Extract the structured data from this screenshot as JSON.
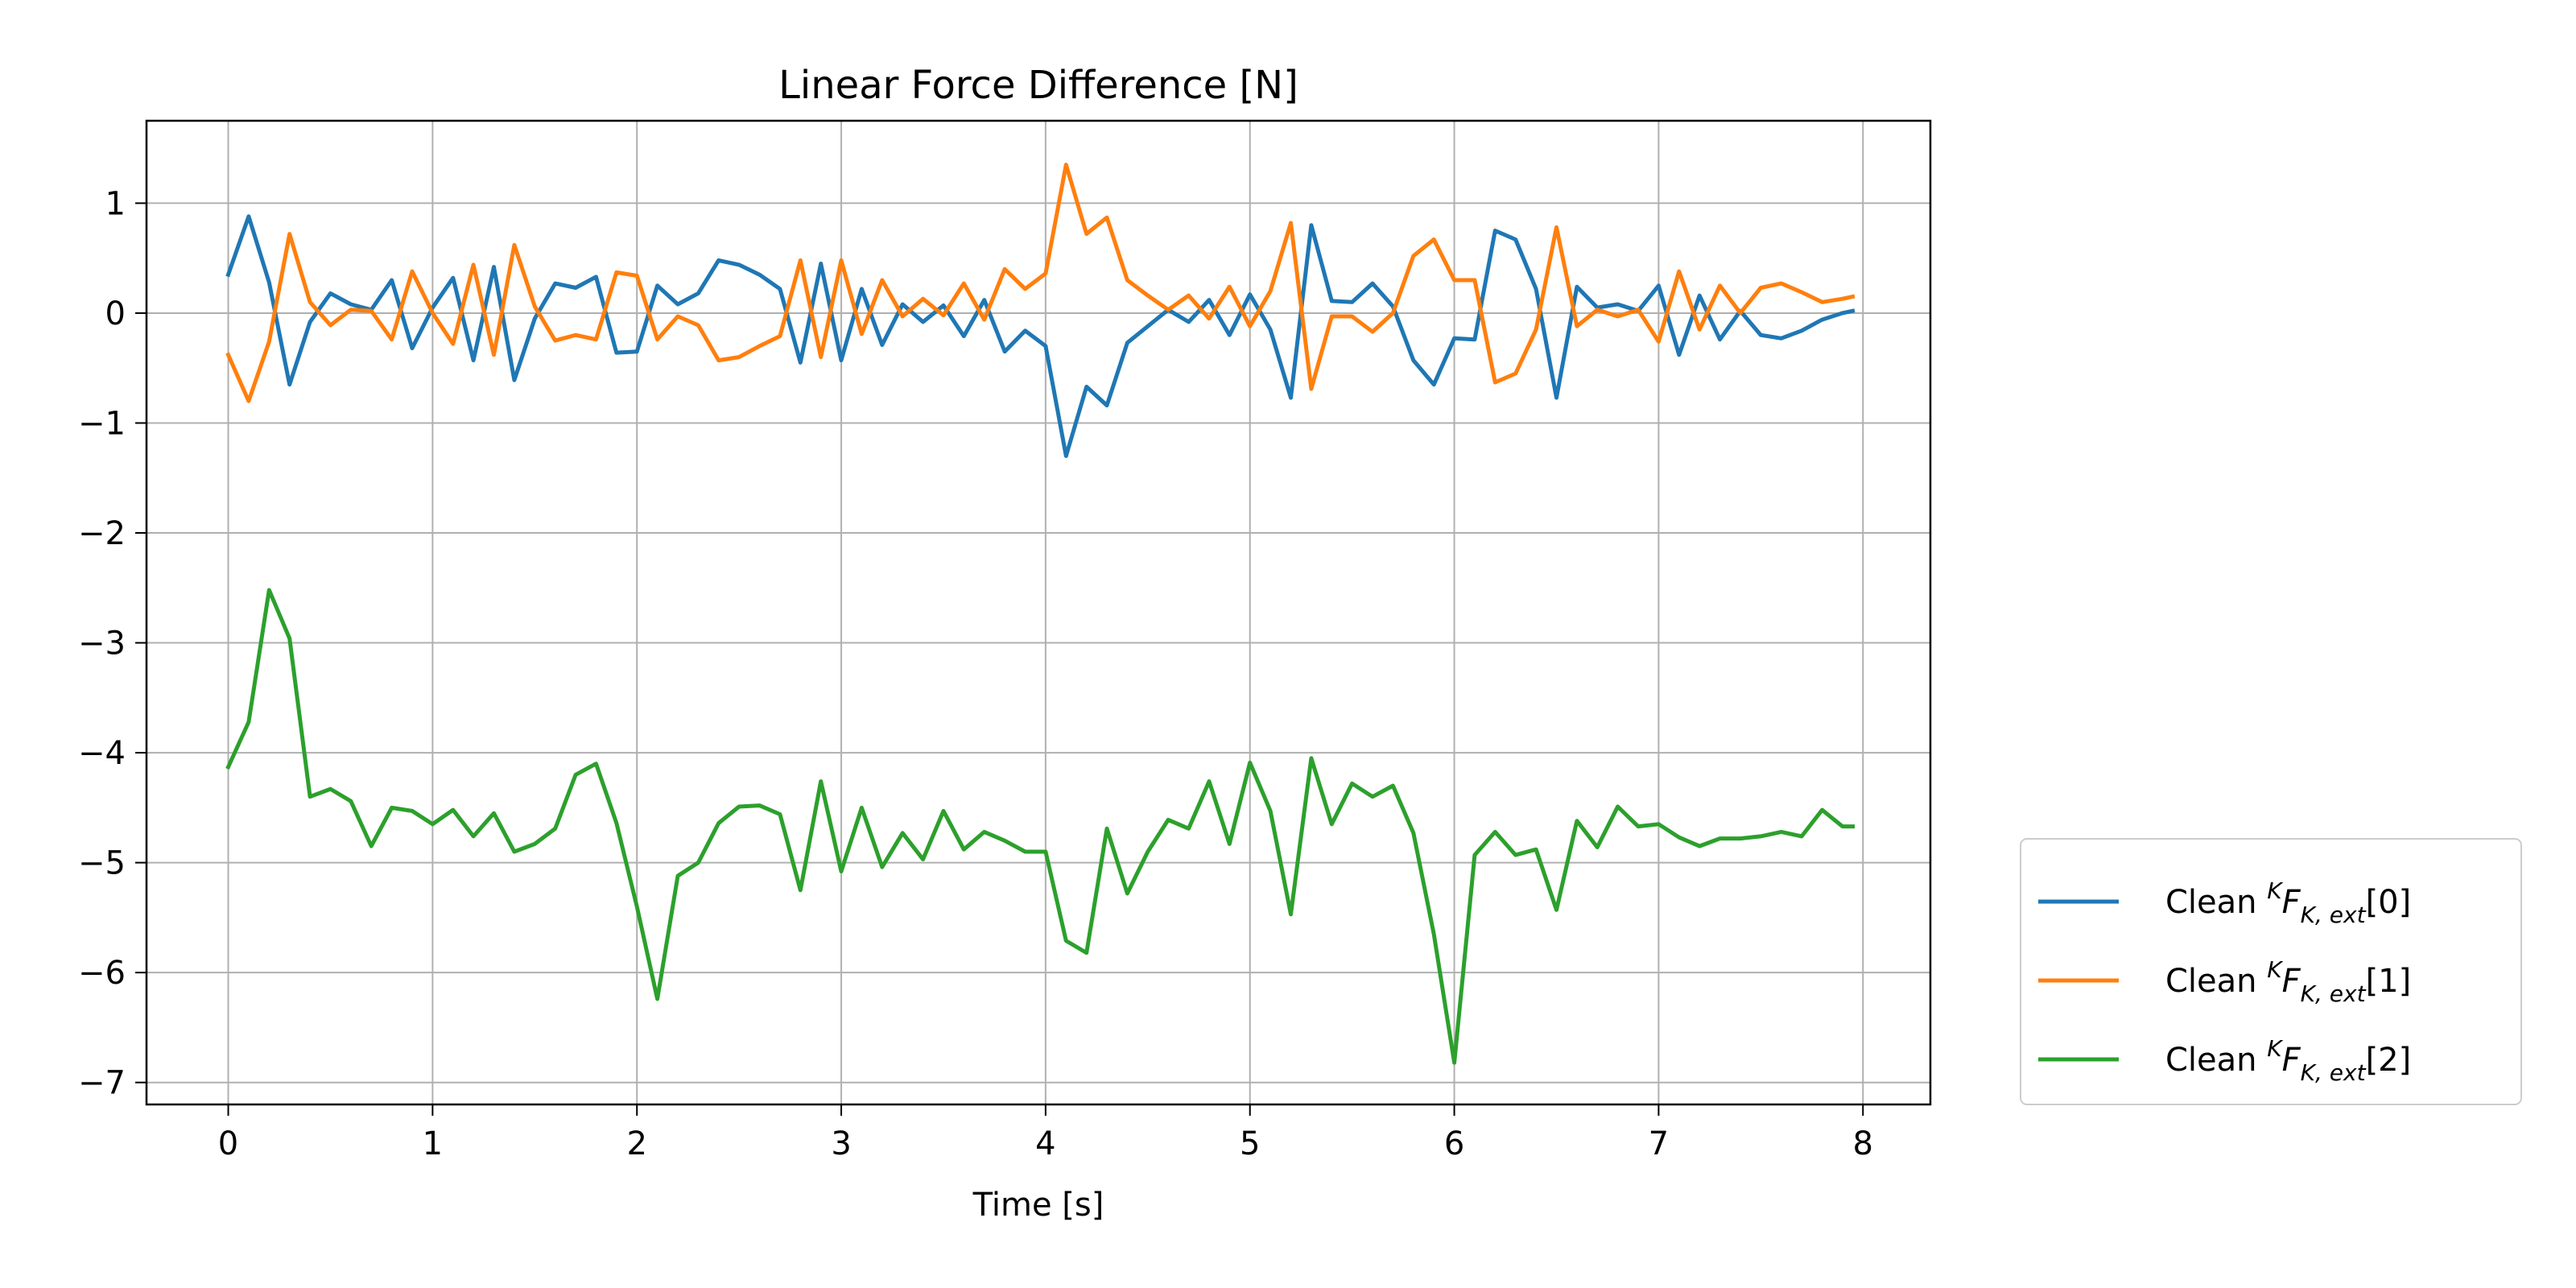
{
  "chart_data": {
    "type": "line",
    "title": "Linear Force Difference [N]",
    "xlabel": "Time [s]",
    "ylabel": "",
    "xlim": [
      -0.4,
      8.33
    ],
    "ylim": [
      -7.2,
      1.75
    ],
    "xticks": [
      0,
      1,
      2,
      3,
      4,
      5,
      6,
      7,
      8
    ],
    "yticks": [
      1,
      0,
      -1,
      -2,
      -3,
      -4,
      -5,
      -6,
      -7
    ],
    "xtick_labels": [
      "0",
      "1",
      "2",
      "3",
      "4",
      "5",
      "6",
      "7",
      "8"
    ],
    "ytick_labels": [
      "1",
      "0",
      "−1",
      "−2",
      "−3",
      "−4",
      "−5",
      "−6",
      "−7"
    ],
    "grid": true,
    "legend_position": "outside-lower-right",
    "x": [
      0.0,
      0.1,
      0.2,
      0.3,
      0.4,
      0.5,
      0.6,
      0.7,
      0.8,
      0.9,
      1.0,
      1.1,
      1.2,
      1.3,
      1.4,
      1.5,
      1.6,
      1.7,
      1.8,
      1.9,
      2.0,
      2.1,
      2.2,
      2.3,
      2.4,
      2.5,
      2.6,
      2.7,
      2.8,
      2.9,
      3.0,
      3.1,
      3.2,
      3.3,
      3.4,
      3.5,
      3.6,
      3.7,
      3.8,
      3.9,
      4.0,
      4.1,
      4.2,
      4.3,
      4.4,
      4.5,
      4.6,
      4.7,
      4.8,
      4.9,
      5.0,
      5.1,
      5.2,
      5.3,
      5.4,
      5.5,
      5.6,
      5.7,
      5.8,
      5.9,
      6.0,
      6.1,
      6.2,
      6.3,
      6.4,
      6.5,
      6.6,
      6.7,
      6.8,
      6.9,
      7.0,
      7.1,
      7.2,
      7.3,
      7.4,
      7.5,
      7.6,
      7.7,
      7.8,
      7.9,
      7.95
    ],
    "series": [
      {
        "name": "Clean $^KF_{K,ext}[0]$",
        "legend_prefix": "Clean ",
        "legend_sup": "K",
        "legend_main": "F",
        "legend_sub": "K, ext",
        "legend_suffix": "[0]",
        "color": "#1f77b4",
        "values": [
          0.35,
          0.88,
          0.28,
          -0.65,
          -0.08,
          0.18,
          0.08,
          0.03,
          0.3,
          -0.32,
          0.05,
          0.32,
          -0.43,
          0.42,
          -0.61,
          -0.05,
          0.27,
          0.23,
          0.33,
          -0.36,
          -0.35,
          0.25,
          0.08,
          0.18,
          0.48,
          0.44,
          0.35,
          0.22,
          -0.45,
          0.45,
          -0.43,
          0.22,
          -0.29,
          0.08,
          -0.08,
          0.07,
          -0.21,
          0.12,
          -0.35,
          -0.16,
          -0.3,
          -1.3,
          -0.67,
          -0.84,
          -0.27,
          -0.12,
          0.03,
          -0.08,
          0.12,
          -0.2,
          0.17,
          -0.15,
          -0.77,
          0.8,
          0.11,
          0.1,
          0.27,
          0.06,
          -0.43,
          -0.65,
          -0.23,
          -0.24,
          0.75,
          0.67,
          0.22,
          -0.77,
          0.24,
          0.05,
          0.08,
          0.02,
          0.25,
          -0.38,
          0.16,
          -0.24,
          0.02,
          -0.2,
          -0.23,
          -0.16,
          -0.06,
          0.0,
          0.02
        ]
      },
      {
        "name": "Clean $^KF_{K,ext}[1]$",
        "legend_prefix": "Clean ",
        "legend_sup": "K",
        "legend_main": "F",
        "legend_sub": "K, ext",
        "legend_suffix": "[1]",
        "color": "#ff7f0e",
        "values": [
          -0.38,
          -0.8,
          -0.26,
          0.72,
          0.1,
          -0.11,
          0.03,
          0.02,
          -0.24,
          0.38,
          0.0,
          -0.28,
          0.44,
          -0.38,
          0.62,
          0.06,
          -0.25,
          -0.2,
          -0.24,
          0.37,
          0.34,
          -0.24,
          -0.03,
          -0.11,
          -0.43,
          -0.4,
          -0.3,
          -0.21,
          0.48,
          -0.4,
          0.48,
          -0.19,
          0.3,
          -0.03,
          0.13,
          -0.02,
          0.27,
          -0.06,
          0.4,
          0.22,
          0.36,
          1.35,
          0.72,
          0.87,
          0.3,
          0.16,
          0.03,
          0.16,
          -0.05,
          0.24,
          -0.12,
          0.2,
          0.82,
          -0.69,
          -0.03,
          -0.03,
          -0.17,
          0.0,
          0.52,
          0.67,
          0.3,
          0.3,
          -0.63,
          -0.55,
          -0.15,
          0.78,
          -0.12,
          0.03,
          -0.03,
          0.03,
          -0.26,
          0.38,
          -0.15,
          0.25,
          0.0,
          0.23,
          0.27,
          0.19,
          0.1,
          0.13,
          0.15
        ]
      },
      {
        "name": "Clean $^KF_{K,ext}[2]$",
        "legend_prefix": "Clean ",
        "legend_sup": "K",
        "legend_main": "F",
        "legend_sub": "K, ext",
        "legend_suffix": "[2]",
        "color": "#2ca02c",
        "values": [
          -4.13,
          -3.72,
          -2.52,
          -2.96,
          -4.4,
          -4.33,
          -4.44,
          -4.85,
          -4.5,
          -4.53,
          -4.65,
          -4.52,
          -4.76,
          -4.55,
          -4.9,
          -4.83,
          -4.69,
          -4.2,
          -4.1,
          -4.64,
          -5.4,
          -6.24,
          -5.12,
          -5.0,
          -4.64,
          -4.49,
          -4.48,
          -4.56,
          -5.25,
          -4.26,
          -5.08,
          -4.5,
          -5.04,
          -4.73,
          -4.97,
          -4.53,
          -4.88,
          -4.72,
          -4.8,
          -4.9,
          -4.9,
          -5.71,
          -5.82,
          -4.69,
          -5.28,
          -4.9,
          -4.61,
          -4.69,
          -4.26,
          -4.83,
          -4.09,
          -4.53,
          -5.47,
          -4.05,
          -4.65,
          -4.28,
          -4.4,
          -4.3,
          -4.73,
          -5.65,
          -6.82,
          -4.93,
          -4.72,
          -4.93,
          -4.88,
          -5.43,
          -4.62,
          -4.86,
          -4.49,
          -4.67,
          -4.65,
          -4.77,
          -4.85,
          -4.78,
          -4.78,
          -4.76,
          -4.72,
          -4.76,
          -4.52,
          -4.67,
          -4.67
        ]
      }
    ]
  }
}
